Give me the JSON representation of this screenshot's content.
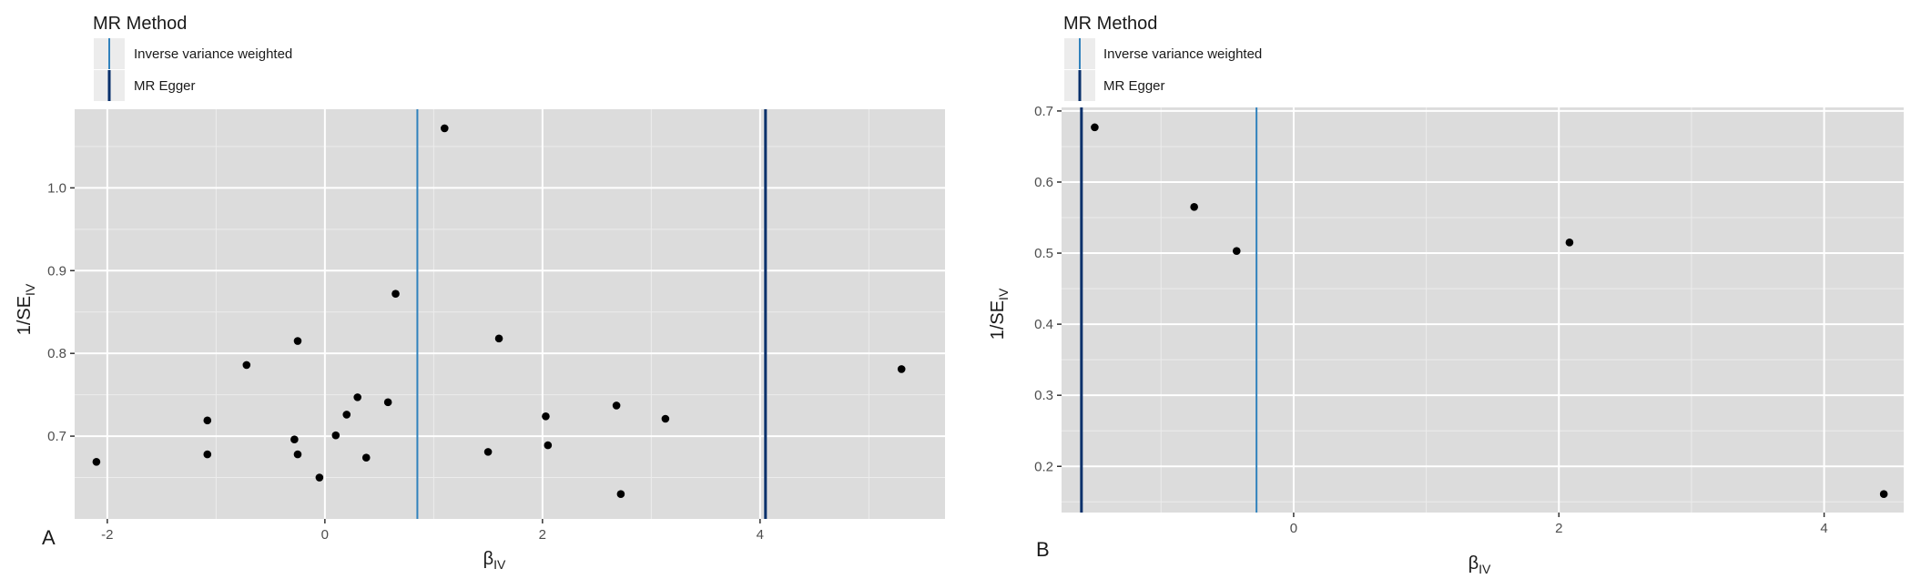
{
  "chart_data": [
    {
      "type": "scatter",
      "panel": "A",
      "legend": {
        "title": "MR Method",
        "entries": [
          "Inverse variance weighted",
          "MR Egger"
        ],
        "placement": "top-left"
      },
      "xlabel_main": "β",
      "xlabel_sub": "IV",
      "ylabel_main": "1/SE",
      "ylabel_sub": "IV",
      "xlim": [
        -2.3,
        5.7
      ],
      "ylim": [
        0.6,
        1.095
      ],
      "xticks": [
        -2,
        0,
        2,
        4
      ],
      "yticks": [
        0.7,
        0.8,
        0.9,
        1.0
      ],
      "xtick_labels": [
        "-2",
        "0",
        "2",
        "4"
      ],
      "ytick_labels": [
        "0.7",
        "0.8",
        "0.9",
        "1.0"
      ],
      "grid": true,
      "lines": [
        {
          "method": "Inverse variance weighted",
          "x": 0.85,
          "color": "#3182bd"
        },
        {
          "method": "MR Egger",
          "x": 4.05,
          "color": "#08306b"
        }
      ],
      "points": [
        {
          "x": 1.1,
          "y": 1.072
        },
        {
          "x": 0.65,
          "y": 0.872
        },
        {
          "x": 1.6,
          "y": 0.818
        },
        {
          "x": -0.25,
          "y": 0.815
        },
        {
          "x": -0.72,
          "y": 0.786
        },
        {
          "x": 5.3,
          "y": 0.781
        },
        {
          "x": 0.3,
          "y": 0.747
        },
        {
          "x": 0.58,
          "y": 0.741
        },
        {
          "x": 2.68,
          "y": 0.737
        },
        {
          "x": 0.2,
          "y": 0.726
        },
        {
          "x": 2.03,
          "y": 0.724
        },
        {
          "x": 3.13,
          "y": 0.721
        },
        {
          "x": -1.08,
          "y": 0.719
        },
        {
          "x": 0.1,
          "y": 0.701
        },
        {
          "x": -0.28,
          "y": 0.696
        },
        {
          "x": 2.05,
          "y": 0.689
        },
        {
          "x": 1.5,
          "y": 0.681
        },
        {
          "x": -1.08,
          "y": 0.678
        },
        {
          "x": -0.25,
          "y": 0.678
        },
        {
          "x": 0.38,
          "y": 0.674
        },
        {
          "x": -2.1,
          "y": 0.669
        },
        {
          "x": -0.05,
          "y": 0.65
        },
        {
          "x": 2.72,
          "y": 0.63
        }
      ]
    },
    {
      "type": "scatter",
      "panel": "B",
      "legend": {
        "title": "MR Method",
        "entries": [
          "Inverse variance weighted",
          "MR Egger"
        ],
        "placement": "top-left"
      },
      "xlabel_main": "β",
      "xlabel_sub": "IV",
      "ylabel_main": "1/SE",
      "ylabel_sub": "IV",
      "xlim": [
        -1.75,
        4.6
      ],
      "ylim": [
        0.135,
        0.705
      ],
      "xticks": [
        0,
        2,
        4
      ],
      "yticks": [
        0.2,
        0.3,
        0.4,
        0.5,
        0.6,
        0.7
      ],
      "xtick_labels": [
        "0",
        "2",
        "4"
      ],
      "ytick_labels": [
        "0.2",
        "0.3",
        "0.4",
        "0.5",
        "0.6",
        "0.7"
      ],
      "grid": true,
      "lines": [
        {
          "method": "Inverse variance weighted",
          "x": -0.28,
          "color": "#3182bd"
        },
        {
          "method": "MR Egger",
          "x": -1.6,
          "color": "#08306b"
        }
      ],
      "points": [
        {
          "x": -1.5,
          "y": 0.677
        },
        {
          "x": -0.75,
          "y": 0.565
        },
        {
          "x": -0.43,
          "y": 0.503
        },
        {
          "x": 2.08,
          "y": 0.515
        },
        {
          "x": 4.45,
          "y": 0.161
        }
      ]
    }
  ]
}
